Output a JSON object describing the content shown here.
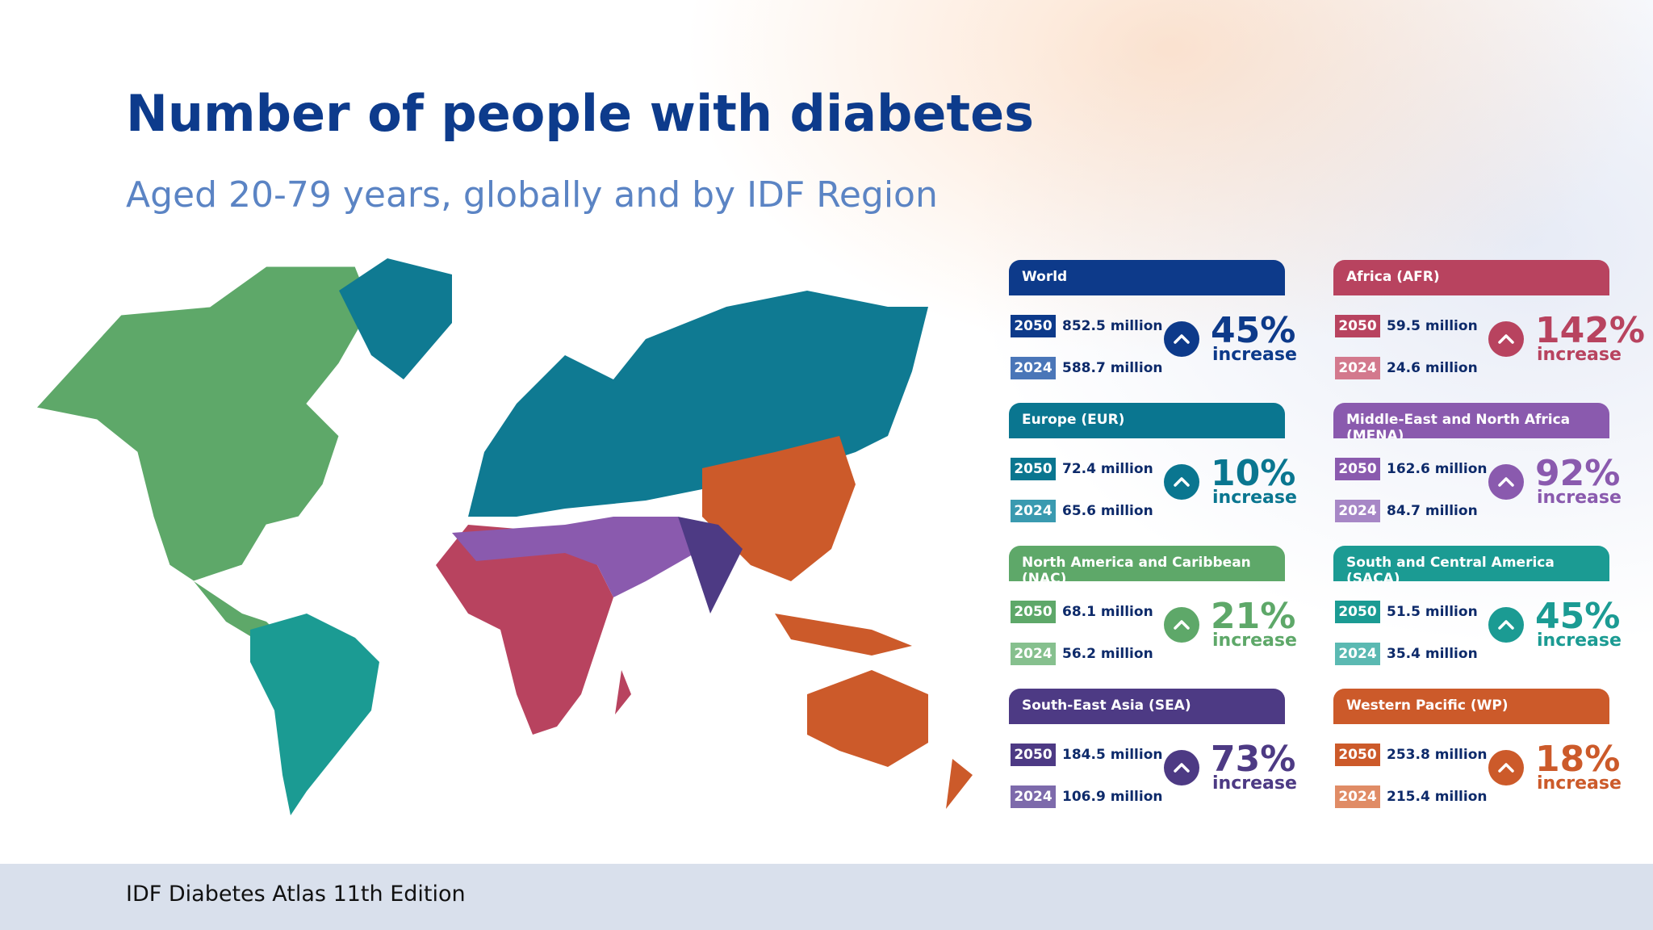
{
  "header": {
    "title": "Number of people with diabetes",
    "subtitle": "Aged 20-79 years, globally and by IDF Region"
  },
  "regions": [
    {
      "name": "World",
      "color": "#0d3a8a",
      "light_color": "#4a76b8",
      "rows": [
        {
          "year": "2050",
          "value": "852.5 million"
        },
        {
          "year": "2024",
          "value": "588.7 million"
        }
      ],
      "percent": "45%",
      "label": "increase"
    },
    {
      "name": "Africa (AFR)",
      "color": "#b8435f",
      "light_color": "#d3798d",
      "rows": [
        {
          "year": "2050",
          "value": "59.5 million"
        },
        {
          "year": "2024",
          "value": "24.6 million"
        }
      ],
      "percent": "142%",
      "label": "increase"
    },
    {
      "name": "Europe (EUR)",
      "color": "#0a7690",
      "light_color": "#3a9ab0",
      "rows": [
        {
          "year": "2050",
          "value": "72.4 million"
        },
        {
          "year": "2024",
          "value": "65.6 million"
        }
      ],
      "percent": "10%",
      "label": "increase"
    },
    {
      "name": "Middle-East and North Africa (MENA)",
      "color": "#8a5aae",
      "light_color": "#a787c6",
      "rows": [
        {
          "year": "2050",
          "value": "162.6 million"
        },
        {
          "year": "2024",
          "value": "84.7 million"
        }
      ],
      "percent": "92%",
      "label": "increase"
    },
    {
      "name": "North America and Caribbean (NAC)",
      "color": "#5ea869",
      "light_color": "#86c08e",
      "rows": [
        {
          "year": "2050",
          "value": "68.1 million"
        },
        {
          "year": "2024",
          "value": "56.2 million"
        }
      ],
      "percent": "21%",
      "label": "increase"
    },
    {
      "name": "South and Central America (SACA)",
      "color": "#1b9b93",
      "light_color": "#5bb9b2",
      "rows": [
        {
          "year": "2050",
          "value": "51.5 million"
        },
        {
          "year": "2024",
          "value": "35.4 million"
        }
      ],
      "percent": "45%",
      "label": "increase"
    },
    {
      "name": "South-East Asia (SEA)",
      "color": "#4d3a84",
      "light_color": "#7d6aab",
      "rows": [
        {
          "year": "2050",
          "value": "184.5 million"
        },
        {
          "year": "2024",
          "value": "106.9 million"
        }
      ],
      "percent": "73%",
      "label": "increase"
    },
    {
      "name": "Western Pacific (WP)",
      "color": "#cc5a2a",
      "light_color": "#e08c66",
      "rows": [
        {
          "year": "2050",
          "value": "253.8 million"
        },
        {
          "year": "2024",
          "value": "215.4 million"
        }
      ],
      "percent": "18%",
      "label": "increase"
    }
  ],
  "footer": {
    "text": "IDF Diabetes Atlas 11th Edition"
  }
}
